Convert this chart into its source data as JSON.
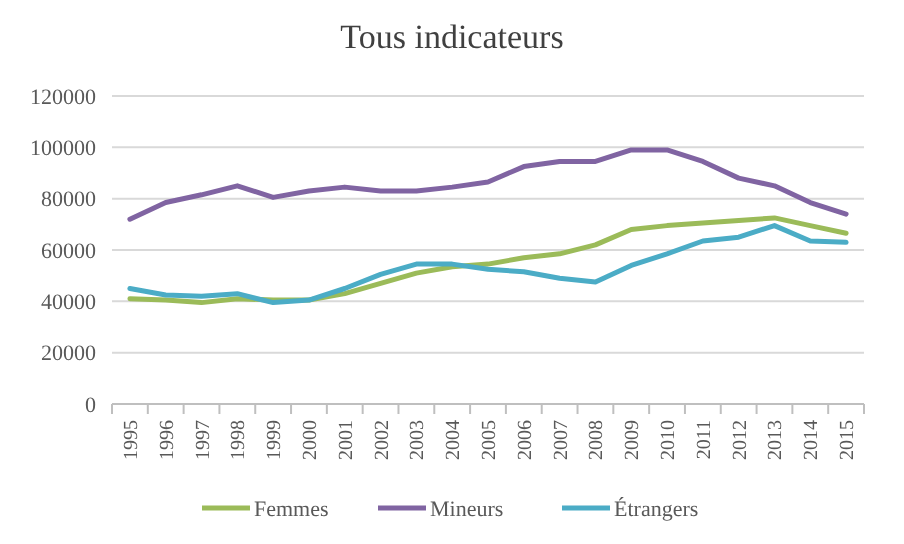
{
  "chart_data": {
    "type": "line",
    "title": "Tous indicateurs",
    "categories": [
      "1995",
      "1996",
      "1997",
      "1998",
      "1999",
      "2000",
      "2001",
      "2002",
      "2003",
      "2004",
      "2005",
      "2006",
      "2007",
      "2008",
      "2009",
      "2010",
      "2011",
      "2012",
      "2013",
      "2014",
      "2015"
    ],
    "series": [
      {
        "name": "Femmes",
        "color": "#9bbb59",
        "values": [
          41000,
          40500,
          39500,
          41000,
          40500,
          40500,
          43000,
          47000,
          51000,
          53500,
          54500,
          57000,
          58500,
          62000,
          68000,
          69500,
          70500,
          71500,
          72500,
          69500,
          66500
        ]
      },
      {
        "name": "Mineurs",
        "color": "#8064a2",
        "values": [
          72000,
          78500,
          81500,
          85000,
          80500,
          83000,
          84500,
          83000,
          83000,
          84500,
          86500,
          92500,
          94500,
          94500,
          99000,
          99000,
          94500,
          88000,
          85000,
          78500,
          74000
        ]
      },
      {
        "name": "Étrangers",
        "color": "#4bacc6",
        "values": [
          45000,
          42500,
          42000,
          43000,
          39500,
          40500,
          45000,
          50500,
          54500,
          54500,
          52500,
          51500,
          49000,
          47500,
          54000,
          58500,
          63500,
          65000,
          69500,
          63500,
          63000
        ]
      }
    ],
    "ylim": [
      0,
      120000
    ],
    "yticks": [
      0,
      20000,
      40000,
      60000,
      80000,
      100000,
      120000
    ],
    "grid": "y",
    "legend": "bottom",
    "marker": "none",
    "line_style": "solid"
  }
}
